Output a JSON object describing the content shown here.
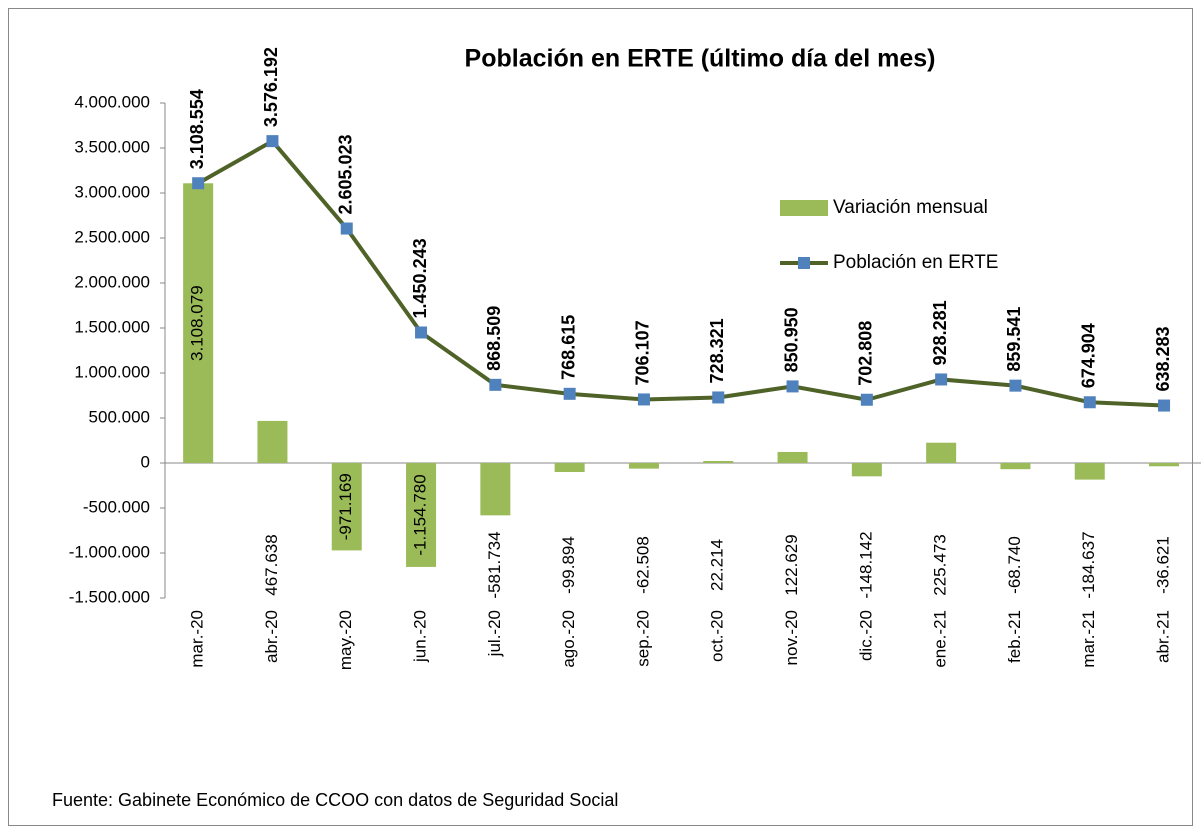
{
  "chart_data": {
    "type": "combo",
    "title": "Población en ERTE (último día del mes)",
    "source": "Fuente: Gabinete Económico de CCOO con datos de Seguridad Social",
    "categories": [
      "mar.-20",
      "abr.-20",
      "may.-20",
      "jun.-20",
      "jul.-20",
      "ago.-20",
      "sep.-20",
      "oct.-20",
      "nov.-20",
      "dic.-20",
      "ene.-21",
      "feb.-21",
      "mar.-21",
      "abr.-21"
    ],
    "series": [
      {
        "name": "Variación mensual",
        "type": "bar",
        "color": "#9bbb59",
        "values": [
          3108079,
          467638,
          -971169,
          -1154780,
          -581734,
          -99894,
          -62508,
          22214,
          122629,
          -148142,
          225473,
          -68740,
          -184637,
          -36621
        ],
        "value_labels": [
          "3.108.079",
          "467.638",
          "-971.169",
          "-1.154.780",
          "-581.734",
          "-99.894",
          "-62.508",
          "22.214",
          "122.629",
          "-148.142",
          "225.473",
          "-68.740",
          "-184.637",
          "-36.621"
        ]
      },
      {
        "name": "Población en ERTE",
        "type": "line",
        "color": "#4f6228",
        "marker_color": "#4f81bd",
        "values": [
          3108554,
          3576192,
          2605023,
          1450243,
          868509,
          768615,
          706107,
          728321,
          850950,
          702808,
          928281,
          859541,
          674904,
          638283
        ],
        "value_labels": [
          "3.108.554",
          "3.576.192",
          "2.605.023",
          "1.450.243",
          "868.509",
          "768.615",
          "706.107",
          "728.321",
          "850.950",
          "702.808",
          "928.281",
          "859.541",
          "674.904",
          "638.283"
        ]
      }
    ],
    "ylim": [
      -1500000,
      4000000
    ],
    "yticks": [
      {
        "value": -1500000,
        "label": "-1.500.000"
      },
      {
        "value": -1000000,
        "label": "-1.000.000"
      },
      {
        "value": -500000,
        "label": "-500.000"
      },
      0,
      {
        "value": 500000,
        "label": "500.000"
      },
      {
        "value": 1000000,
        "label": "1.000.000"
      },
      {
        "value": 1500000,
        "label": "1.500.000"
      },
      {
        "value": 2000000,
        "label": "2.000.000"
      },
      {
        "value": 2500000,
        "label": "2.500.000"
      },
      {
        "value": 3000000,
        "label": "3.000.000"
      },
      {
        "value": 3500000,
        "label": "3.500.000"
      },
      {
        "value": 4000000,
        "label": "4.000.000"
      }
    ],
    "grid": false,
    "legend": "upper right"
  }
}
